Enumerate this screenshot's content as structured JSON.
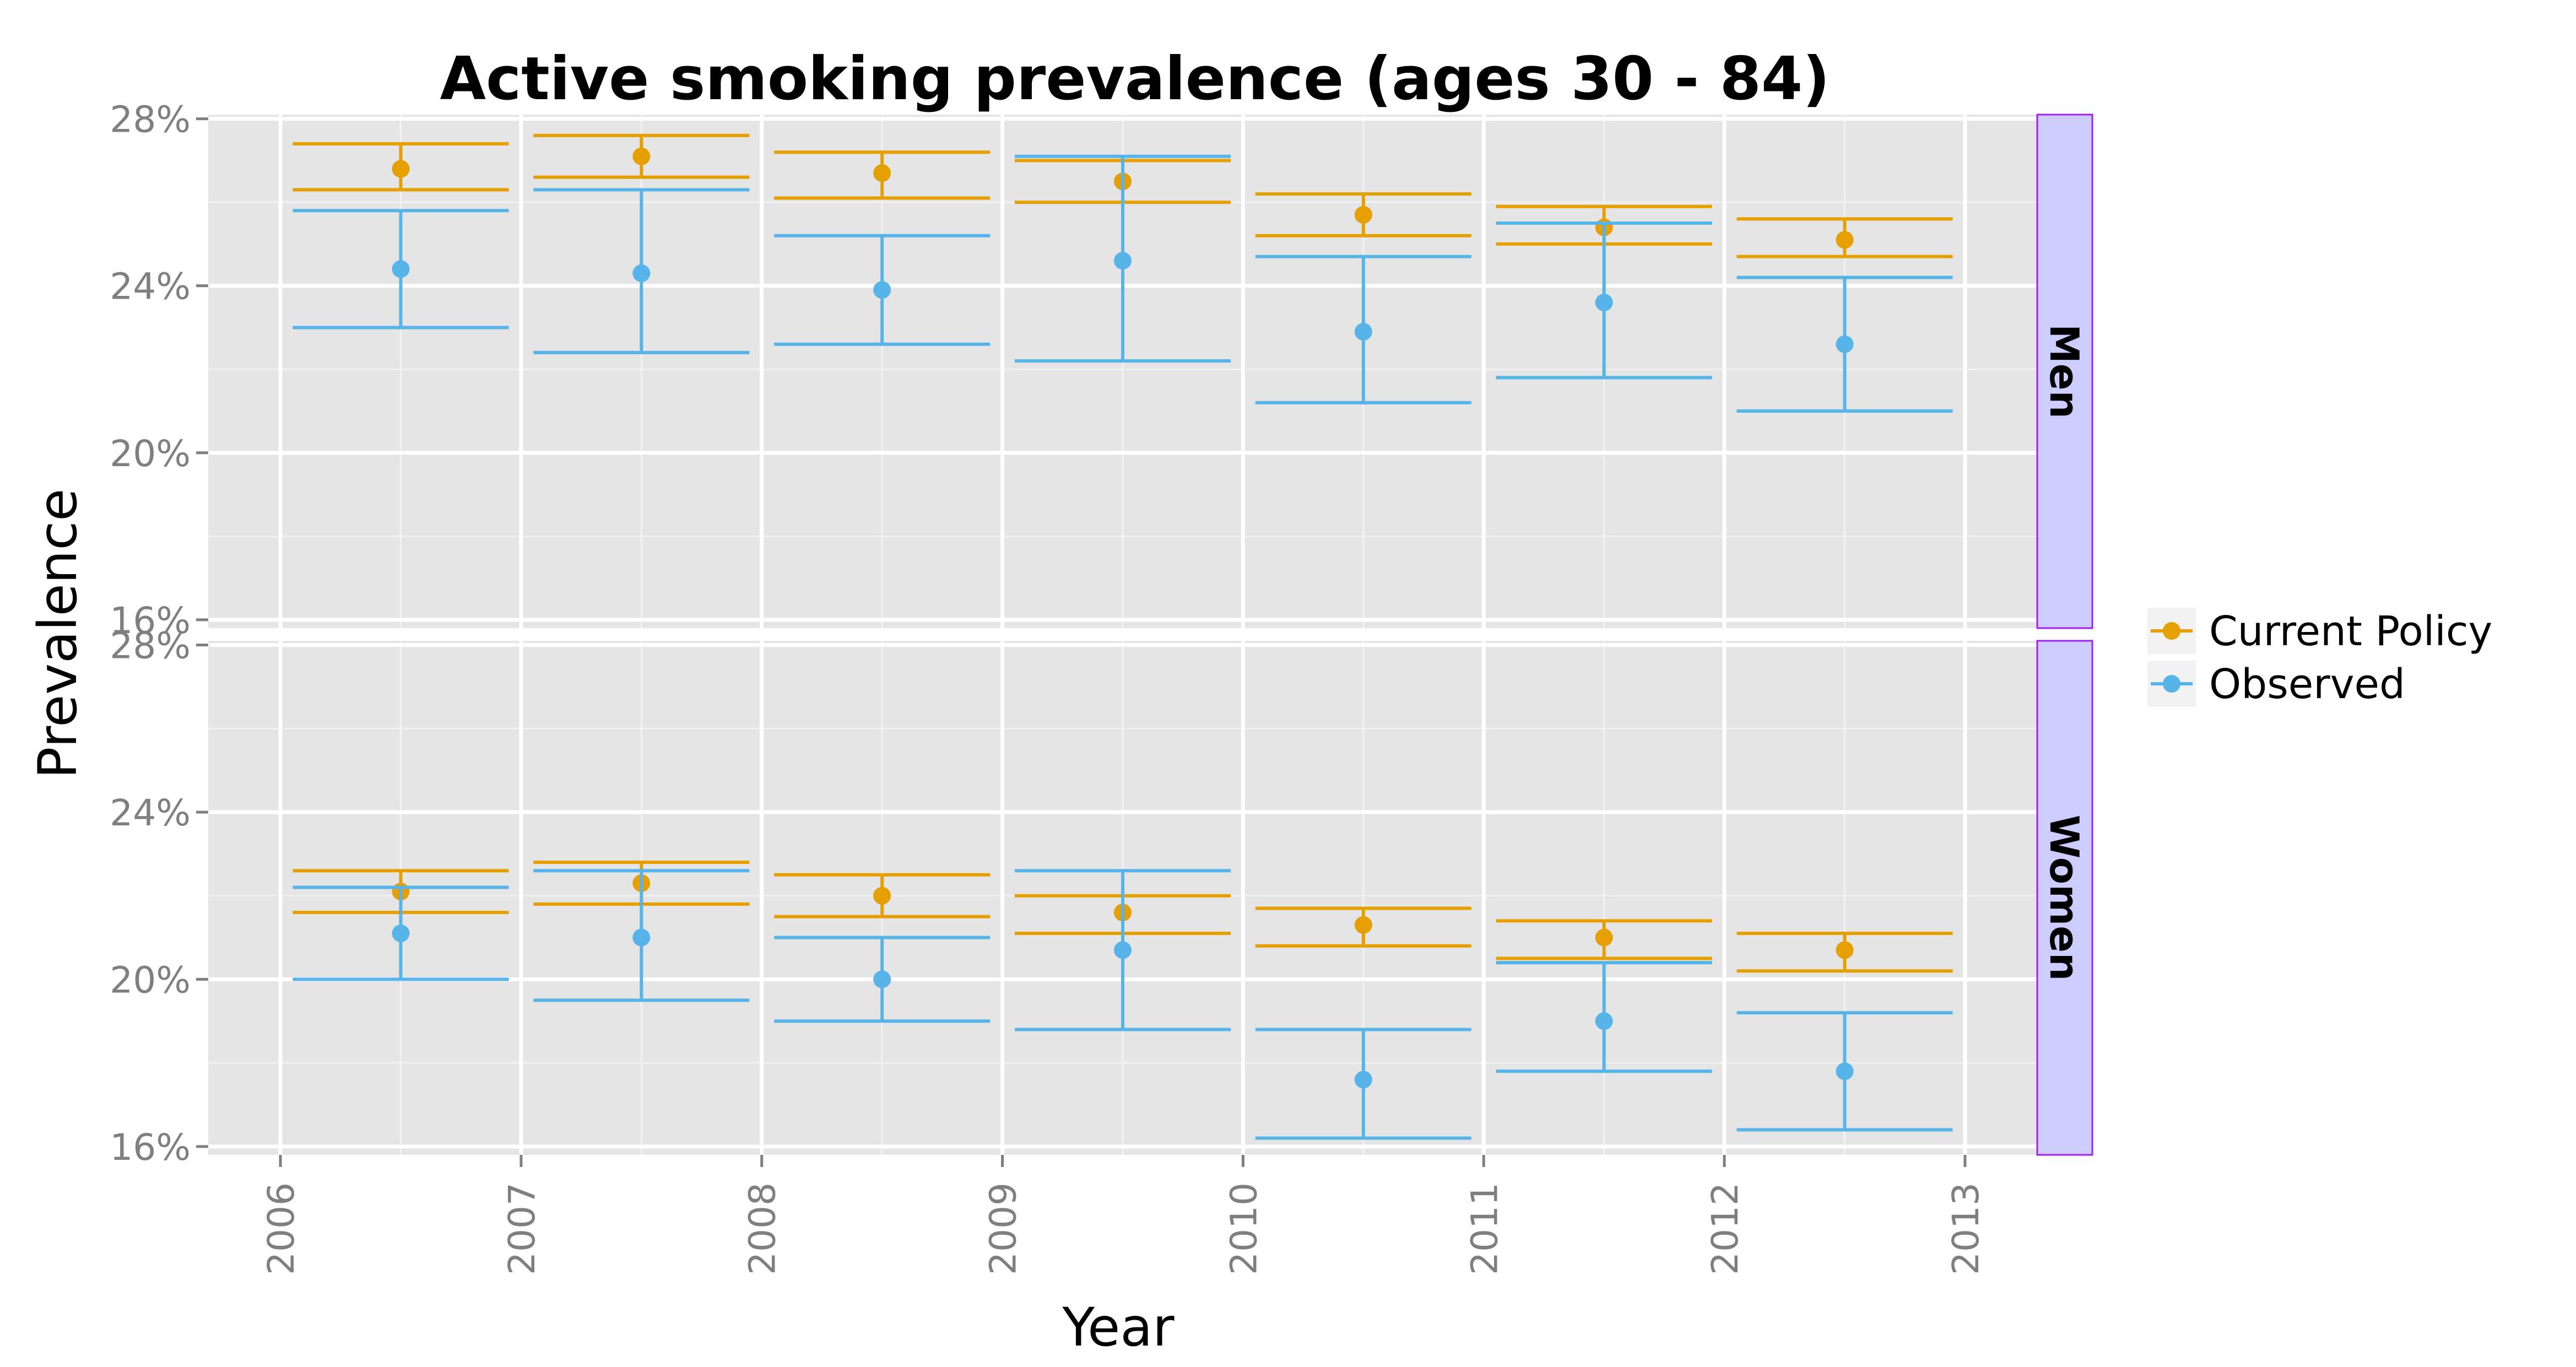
{
  "chart_data": {
    "type": "errorbar",
    "title": "Active smoking prevalence (ages 30 - 84)",
    "xlabel": "Year",
    "ylabel": "Prevalence",
    "x_ticks": [
      "2006",
      "2007",
      "2008",
      "2009",
      "2010",
      "2011",
      "2012",
      "2013"
    ],
    "y_ticks": [
      16,
      20,
      24,
      28
    ],
    "y_tick_labels": [
      "16%",
      "20%",
      "24%",
      "28%"
    ],
    "ylim": [
      15.8,
      28.1
    ],
    "xlim": [
      2005.7,
      2013.3
    ],
    "y_unit": "%",
    "grid": true,
    "legend_position": "right",
    "legend": [
      {
        "name": "Current Policy",
        "color": "#E69F00"
      },
      {
        "name": "Observed",
        "color": "#56B4E9"
      }
    ],
    "panels": [
      {
        "label": "Men",
        "series": [
          {
            "name": "Current Policy",
            "x": [
              2006.5,
              2007.5,
              2008.5,
              2009.5,
              2010.5,
              2011.5,
              2012.5
            ],
            "y": [
              26.8,
              27.1,
              26.7,
              26.5,
              25.7,
              25.4,
              25.1
            ],
            "lower": [
              26.3,
              26.6,
              26.1,
              26.0,
              25.2,
              25.0,
              24.7
            ],
            "upper": [
              27.4,
              27.6,
              27.2,
              27.0,
              26.2,
              25.9,
              25.6
            ]
          },
          {
            "name": "Observed",
            "x": [
              2006.5,
              2007.5,
              2008.5,
              2009.5,
              2010.5,
              2011.5,
              2012.5
            ],
            "y": [
              24.4,
              24.3,
              23.9,
              24.6,
              22.9,
              23.6,
              22.6
            ],
            "lower": [
              23.0,
              22.4,
              22.6,
              22.2,
              21.2,
              21.8,
              21.0
            ],
            "upper": [
              25.8,
              26.3,
              25.2,
              27.1,
              24.7,
              25.5,
              24.2
            ]
          }
        ]
      },
      {
        "label": "Women",
        "series": [
          {
            "name": "Current Policy",
            "x": [
              2006.5,
              2007.5,
              2008.5,
              2009.5,
              2010.5,
              2011.5,
              2012.5
            ],
            "y": [
              22.1,
              22.3,
              22.0,
              21.6,
              21.3,
              21.0,
              20.7
            ],
            "lower": [
              21.6,
              21.8,
              21.5,
              21.1,
              20.8,
              20.5,
              20.2
            ],
            "upper": [
              22.6,
              22.8,
              22.5,
              22.0,
              21.7,
              21.4,
              21.1
            ]
          },
          {
            "name": "Observed",
            "x": [
              2006.5,
              2007.5,
              2008.5,
              2009.5,
              2010.5,
              2011.5,
              2012.5
            ],
            "y": [
              21.1,
              21.0,
              20.0,
              20.7,
              17.6,
              19.0,
              17.8
            ],
            "lower": [
              20.0,
              19.5,
              19.0,
              18.8,
              16.2,
              17.8,
              16.4
            ],
            "upper": [
              22.2,
              22.6,
              21.0,
              22.6,
              18.8,
              20.4,
              19.2
            ]
          }
        ]
      }
    ]
  }
}
